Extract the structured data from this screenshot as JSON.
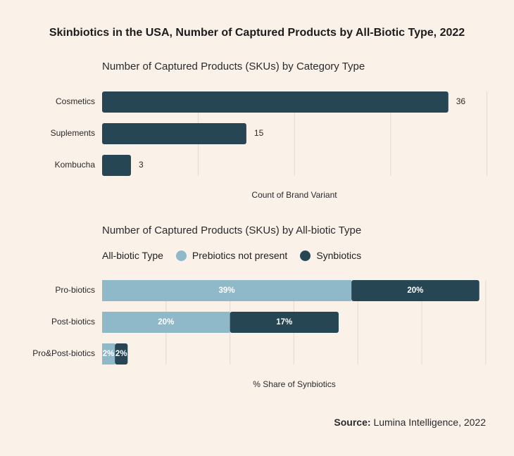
{
  "title": "Skinbiotics in the USA, Number of Captured Products by All-Biotic Type, 2022",
  "source": {
    "label": "Source:",
    "text": "Lumina Intelligence, 2022"
  },
  "colors": {
    "background": "#faf1e9",
    "dark": "#264653",
    "light": "#8fb8c9",
    "grid": "#e2d9d1"
  },
  "chart_data": [
    {
      "type": "bar",
      "orientation": "horizontal",
      "title": "Number of Captured Products (SKUs) by Category Type",
      "xlabel": "Count of Brand Variant",
      "categories": [
        "Cosmetics",
        "Suplements",
        "Kombucha"
      ],
      "values": [
        36,
        15,
        3
      ],
      "value_labels": [
        "36",
        "15",
        "3"
      ],
      "xlim": [
        0,
        40
      ],
      "grid": true
    },
    {
      "type": "bar",
      "orientation": "horizontal",
      "stacked": true,
      "title": "Number of Captured Products (SKUs) by All-biotic Type",
      "legend_title": "All-biotic Type",
      "legend_position": "top-left",
      "xlabel": "% Share of Synbiotics",
      "categories": [
        "Pro-biotics",
        "Post-biotics",
        "Pro&Post-biotics"
      ],
      "series": [
        {
          "name": "Prebiotics not present",
          "values": [
            39,
            20,
            2
          ],
          "labels": [
            "39%",
            "20%",
            "2%"
          ],
          "color": "#8fb8c9"
        },
        {
          "name": "Synbiotics",
          "values": [
            20,
            17,
            2
          ],
          "labels": [
            "20%",
            "17%",
            "2%"
          ],
          "color": "#264653"
        }
      ],
      "xlim": [
        0,
        60
      ],
      "grid": true
    }
  ]
}
